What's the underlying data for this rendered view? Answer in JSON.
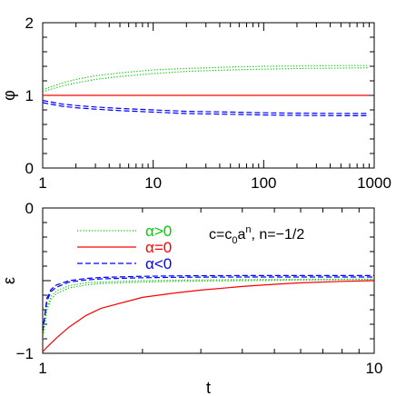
{
  "chart_data": [
    {
      "type": "line",
      "ylabel": "φ",
      "xscale": "log",
      "xlim": [
        1,
        1000
      ],
      "ylim": [
        0,
        2
      ],
      "xticks": [
        1,
        10,
        100,
        1000
      ],
      "xtick_labels": [
        "1",
        "10",
        "100",
        "1000"
      ],
      "yticks": [
        0,
        1,
        2
      ],
      "ytick_labels": [
        "0",
        "1",
        "2"
      ],
      "grid": false,
      "x": [
        1,
        1.5,
        2,
        3,
        5,
        10,
        20,
        50,
        100,
        200,
        500,
        900
      ],
      "series": [
        {
          "name": "α>0",
          "group": "pos",
          "color": "#00cc00",
          "dash": "dotted",
          "values": [
            1.05,
            1.13,
            1.17,
            1.22,
            1.26,
            1.3,
            1.33,
            1.35,
            1.36,
            1.37,
            1.375,
            1.38
          ]
        },
        {
          "name": "α>0",
          "group": "pos",
          "color": "#00cc00",
          "dash": "dotted",
          "values": [
            1.08,
            1.17,
            1.22,
            1.27,
            1.31,
            1.35,
            1.37,
            1.39,
            1.4,
            1.405,
            1.41,
            1.41
          ]
        },
        {
          "name": "α=0",
          "group": "zero",
          "color": "#ff0000",
          "dash": "solid",
          "values": [
            1,
            1,
            1,
            1,
            1,
            1,
            1,
            1,
            1,
            1,
            1,
            1
          ]
        },
        {
          "name": "α<0",
          "group": "neg",
          "color": "#0000ff",
          "dash": "dashed",
          "values": [
            0.93,
            0.88,
            0.86,
            0.84,
            0.82,
            0.8,
            0.78,
            0.77,
            0.76,
            0.755,
            0.75,
            0.75
          ]
        },
        {
          "name": "α<0",
          "group": "neg",
          "color": "#0000ff",
          "dash": "dashed",
          "values": [
            0.9,
            0.85,
            0.83,
            0.81,
            0.79,
            0.77,
            0.75,
            0.74,
            0.73,
            0.725,
            0.72,
            0.72
          ]
        }
      ]
    },
    {
      "type": "line",
      "ylabel": "ε",
      "xlabel": "t",
      "xscale": "log",
      "xlim": [
        1,
        10
      ],
      "ylim": [
        -1,
        0
      ],
      "xticks": [
        1,
        10
      ],
      "xtick_labels": [
        "1",
        "10"
      ],
      "yticks": [
        -1,
        0
      ],
      "ytick_labels": [
        "−1",
        "0"
      ],
      "grid": false,
      "legend": "top-left",
      "annotation": {
        "prefix": "c=c",
        "sub": "0",
        "base": "a",
        "sup": "n",
        "suffix": ",  n=−1/2"
      },
      "x": [
        1.0,
        1.03,
        1.06,
        1.1,
        1.2,
        1.35,
        1.5,
        2,
        2.5,
        3,
        4,
        5,
        6,
        8,
        10
      ],
      "series": [
        {
          "name": "α>0",
          "group": "pos",
          "color": "#00cc00",
          "dash": "dotted",
          "values": [
            -0.9,
            -0.7,
            -0.63,
            -0.59,
            -0.55,
            -0.53,
            -0.52,
            -0.51,
            -0.505,
            -0.503,
            -0.5,
            -0.498,
            -0.496,
            -0.494,
            -0.492
          ]
        },
        {
          "name": "α>0",
          "group": "pos",
          "color": "#00cc00",
          "dash": "dotted",
          "values": [
            -0.9,
            -0.68,
            -0.61,
            -0.57,
            -0.535,
            -0.515,
            -0.51,
            -0.5,
            -0.497,
            -0.495,
            -0.493,
            -0.492,
            -0.491,
            -0.49,
            -0.49
          ]
        },
        {
          "name": "α=0",
          "group": "zero",
          "color": "#ff0000",
          "dash": "solid",
          "values": [
            -0.99,
            -0.958,
            -0.93,
            -0.895,
            -0.82,
            -0.74,
            -0.69,
            -0.615,
            -0.585,
            -0.565,
            -0.54,
            -0.525,
            -0.515,
            -0.505,
            -0.5
          ]
        },
        {
          "name": "α<0",
          "group": "neg",
          "color": "#0000ff",
          "dash": "dashed",
          "values": [
            -0.85,
            -0.64,
            -0.575,
            -0.545,
            -0.51,
            -0.495,
            -0.488,
            -0.48,
            -0.477,
            -0.476,
            -0.475,
            -0.475,
            -0.475,
            -0.475,
            -0.475
          ]
        },
        {
          "name": "α<0",
          "group": "neg",
          "color": "#0000ff",
          "dash": "dashed",
          "values": [
            -0.85,
            -0.62,
            -0.56,
            -0.53,
            -0.5,
            -0.485,
            -0.478,
            -0.47,
            -0.467,
            -0.466,
            -0.465,
            -0.465,
            -0.465,
            -0.465,
            -0.465
          ]
        }
      ]
    }
  ]
}
